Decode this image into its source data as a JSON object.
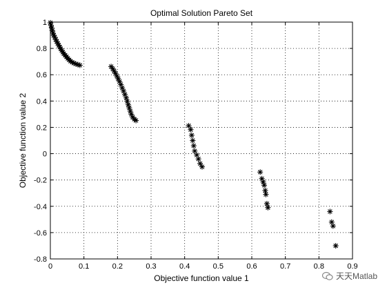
{
  "chart_data": {
    "type": "scatter",
    "title": "Optimal Solution Pareto Set",
    "xlabel": "Objective function value 1",
    "ylabel": "Objective function value 2",
    "xlim": [
      0,
      0.9
    ],
    "ylim": [
      -0.8,
      1
    ],
    "xticks": [
      "0",
      "0.1",
      "0.2",
      "0.3",
      "0.4",
      "0.5",
      "0.6",
      "0.7",
      "0.8",
      "0.9"
    ],
    "yticks": [
      "-0.8",
      "-0.6",
      "-0.4",
      "-0.2",
      "0",
      "0.2",
      "0.4",
      "0.6",
      "0.8",
      "1"
    ],
    "grid": true,
    "marker": "asterisk",
    "points": [
      [
        0.0,
        0.995
      ],
      [
        0.002,
        0.975
      ],
      [
        0.004,
        0.955
      ],
      [
        0.006,
        0.935
      ],
      [
        0.008,
        0.915
      ],
      [
        0.01,
        0.9
      ],
      [
        0.013,
        0.885
      ],
      [
        0.016,
        0.868
      ],
      [
        0.019,
        0.852
      ],
      [
        0.022,
        0.838
      ],
      [
        0.025,
        0.824
      ],
      [
        0.028,
        0.81
      ],
      [
        0.031,
        0.797
      ],
      [
        0.034,
        0.784
      ],
      [
        0.037,
        0.772
      ],
      [
        0.04,
        0.76
      ],
      [
        0.044,
        0.748
      ],
      [
        0.048,
        0.736
      ],
      [
        0.052,
        0.724
      ],
      [
        0.056,
        0.713
      ],
      [
        0.06,
        0.703
      ],
      [
        0.065,
        0.695
      ],
      [
        0.07,
        0.688
      ],
      [
        0.076,
        0.682
      ],
      [
        0.082,
        0.677
      ],
      [
        0.088,
        0.672
      ],
      [
        0.181,
        0.662
      ],
      [
        0.186,
        0.645
      ],
      [
        0.19,
        0.628
      ],
      [
        0.194,
        0.61
      ],
      [
        0.198,
        0.59
      ],
      [
        0.202,
        0.57
      ],
      [
        0.206,
        0.548
      ],
      [
        0.21,
        0.525
      ],
      [
        0.214,
        0.5
      ],
      [
        0.218,
        0.476
      ],
      [
        0.222,
        0.45
      ],
      [
        0.226,
        0.424
      ],
      [
        0.229,
        0.398
      ],
      [
        0.232,
        0.372
      ],
      [
        0.235,
        0.348
      ],
      [
        0.238,
        0.323
      ],
      [
        0.241,
        0.3
      ],
      [
        0.245,
        0.278
      ],
      [
        0.25,
        0.262
      ],
      [
        0.255,
        0.252
      ],
      [
        0.412,
        0.212
      ],
      [
        0.418,
        0.183
      ],
      [
        0.421,
        0.14
      ],
      [
        0.424,
        0.1
      ],
      [
        0.427,
        0.06
      ],
      [
        0.43,
        0.02
      ],
      [
        0.436,
        -0.01
      ],
      [
        0.441,
        -0.04
      ],
      [
        0.446,
        -0.075
      ],
      [
        0.452,
        -0.1
      ],
      [
        0.625,
        -0.14
      ],
      [
        0.63,
        -0.19
      ],
      [
        0.634,
        -0.215
      ],
      [
        0.637,
        -0.24
      ],
      [
        0.64,
        -0.28
      ],
      [
        0.642,
        -0.31
      ],
      [
        0.645,
        -0.38
      ],
      [
        0.648,
        -0.41
      ],
      [
        0.833,
        -0.44
      ],
      [
        0.838,
        -0.52
      ],
      [
        0.842,
        -0.55
      ],
      [
        0.85,
        -0.7
      ]
    ]
  },
  "watermark": {
    "text": "天天Matlab",
    "icon": "wechat-icon"
  }
}
